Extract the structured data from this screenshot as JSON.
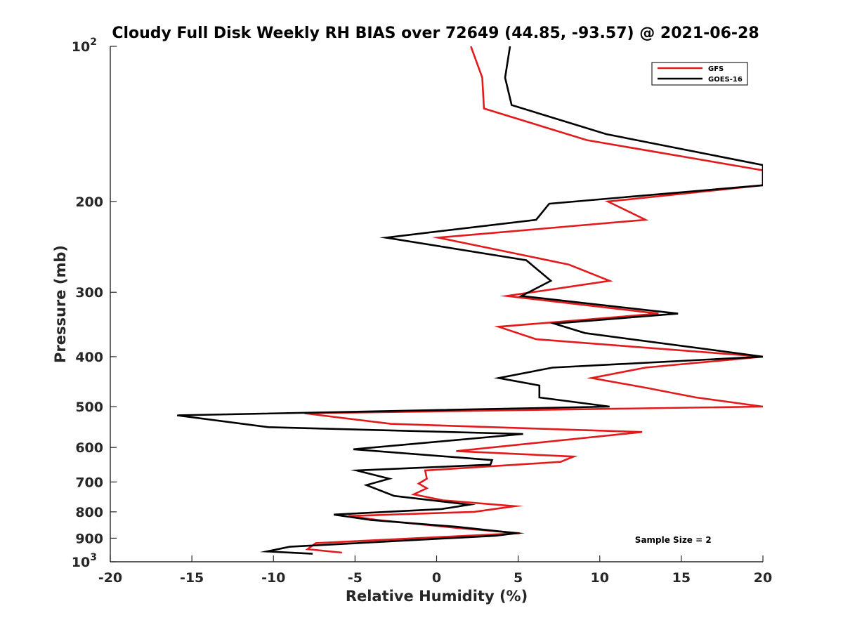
{
  "chart_data": {
    "type": "line",
    "title": "Cloudy Full Disk Weekly RH BIAS over 72649 (44.85, -93.57) @ 2021-06-28",
    "xlabel": "Relative Humidity (%)",
    "ylabel": "Pressure (mb)",
    "xlim": [
      -20,
      20
    ],
    "ylim": [
      100,
      1000
    ],
    "y_scale": "log",
    "y_direction": "reversed",
    "grid": false,
    "legend_position": "top-right",
    "x_ticks": [
      {
        "value": -20,
        "label": "-20"
      },
      {
        "value": -15,
        "label": "-15"
      },
      {
        "value": -10,
        "label": "-10"
      },
      {
        "value": -5,
        "label": "-5"
      },
      {
        "value": 0,
        "label": "0"
      },
      {
        "value": 5,
        "label": "5"
      },
      {
        "value": 10,
        "label": "10"
      },
      {
        "value": 15,
        "label": "15"
      },
      {
        "value": 20,
        "label": "20"
      }
    ],
    "y_ticks": [
      {
        "value": 100,
        "base": "10",
        "exp": "2"
      },
      {
        "value": 200,
        "base": "200",
        "exp": ""
      },
      {
        "value": 300,
        "base": "300",
        "exp": ""
      },
      {
        "value": 400,
        "base": "400",
        "exp": ""
      },
      {
        "value": 500,
        "base": "500",
        "exp": ""
      },
      {
        "value": 600,
        "base": "600",
        "exp": ""
      },
      {
        "value": 700,
        "base": "700",
        "exp": ""
      },
      {
        "value": 800,
        "base": "800",
        "exp": ""
      },
      {
        "value": 900,
        "base": "900",
        "exp": ""
      },
      {
        "value": 1000,
        "base": "10",
        "exp": "3"
      }
    ],
    "series": [
      {
        "name": "GFS",
        "color": "#e31a1c",
        "points": [
          [
            2.1,
            100
          ],
          [
            2.8,
            115
          ],
          [
            2.9,
            132
          ],
          [
            9.2,
            152
          ],
          [
            20,
            174
          ],
          [
            20,
            186
          ],
          [
            10.5,
            200
          ],
          [
            12.8,
            217
          ],
          [
            0.1,
            235
          ],
          [
            8.1,
            265
          ],
          [
            10.6,
            285
          ],
          [
            4.3,
            305
          ],
          [
            13.6,
            330
          ],
          [
            3.8,
            350
          ],
          [
            6.1,
            370
          ],
          [
            20,
            400
          ],
          [
            12.8,
            420
          ],
          [
            9.5,
            440
          ],
          [
            12.9,
            460
          ],
          [
            15.9,
            480
          ],
          [
            20,
            500
          ],
          [
            -8.1,
            515
          ],
          [
            -2.8,
            540
          ],
          [
            12.6,
            560
          ],
          [
            1.2,
            610
          ],
          [
            8.4,
            625
          ],
          [
            7.6,
            640
          ],
          [
            -0.7,
            665
          ],
          [
            -0.6,
            690
          ],
          [
            -1.1,
            705
          ],
          [
            -0.6,
            720
          ],
          [
            -1.4,
            740
          ],
          [
            0.4,
            760
          ],
          [
            4.8,
            780
          ],
          [
            2.3,
            800
          ],
          [
            -5.4,
            815
          ],
          [
            -3.6,
            830
          ],
          [
            1.3,
            860
          ],
          [
            5.1,
            880
          ],
          [
            -7.4,
            920
          ],
          [
            -7.9,
            945
          ],
          [
            -5.8,
            960
          ]
        ]
      },
      {
        "name": "GOES-16",
        "color": "#000000",
        "points": [
          [
            4.5,
            100
          ],
          [
            4.2,
            115
          ],
          [
            4.6,
            130
          ],
          [
            10.4,
            148
          ],
          [
            20,
            170
          ],
          [
            20,
            186
          ],
          [
            6.9,
            202
          ],
          [
            6.1,
            217
          ],
          [
            -3.1,
            235
          ],
          [
            5.5,
            260
          ],
          [
            7.0,
            285
          ],
          [
            5.2,
            305
          ],
          [
            14.8,
            330
          ],
          [
            7.2,
            345
          ],
          [
            9.1,
            360
          ],
          [
            20,
            400
          ],
          [
            7.1,
            420
          ],
          [
            3.8,
            440
          ],
          [
            6.3,
            455
          ],
          [
            6.3,
            480
          ],
          [
            10.6,
            500
          ],
          [
            -15.9,
            520
          ],
          [
            -10.3,
            548
          ],
          [
            5.3,
            565
          ],
          [
            -5.1,
            605
          ],
          [
            3.4,
            635
          ],
          [
            3.3,
            648
          ],
          [
            -4.9,
            665
          ],
          [
            -2.9,
            690
          ],
          [
            -4.3,
            710
          ],
          [
            -2.6,
            745
          ],
          [
            2.0,
            775
          ],
          [
            0.3,
            790
          ],
          [
            -6.3,
            810
          ],
          [
            -4.0,
            830
          ],
          [
            1.2,
            855
          ],
          [
            4.9,
            880
          ],
          [
            3.6,
            890
          ],
          [
            -9.0,
            935
          ],
          [
            -10.4,
            955
          ],
          [
            -7.6,
            965
          ]
        ]
      }
    ],
    "annotations": [
      {
        "text": "Sample Size = 2",
        "x": 14.5,
        "y": 905
      }
    ]
  }
}
